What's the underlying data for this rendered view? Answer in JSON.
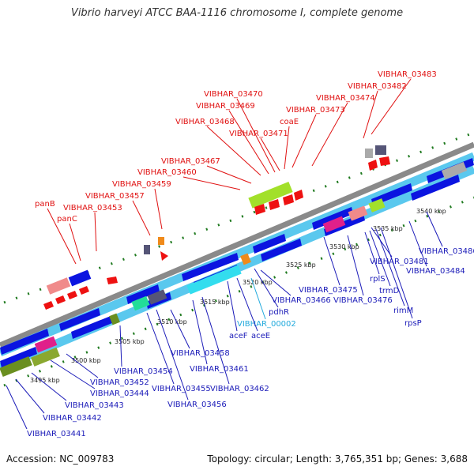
{
  "title": "Vibrio harveyi ATCC BAA-1116 chromosome I, complete genome",
  "footer": {
    "accession": "Accession: NC_009783",
    "summary": "Topology: circular; Length: 3,765,351 bp; Genes: 3,688"
  },
  "colors": {
    "forward_gene": "#0b14e0",
    "reverse_gene": "#0b14e0",
    "cds_band": "#5ac8ee",
    "backbone": "#8a8a8a",
    "tick": "#1f7a1f",
    "label_red": "#e01010",
    "label_blue": "#1a1ab8",
    "label_cyan": "#22aadd"
  },
  "scale_labels": [
    "3495 kbp",
    "3500 kbp",
    "3505 kbp",
    "3510 kbp",
    "3515 kbp",
    "3520 kbp",
    "3525 kbp",
    "3530 kbp",
    "3535 kbp",
    "3540 kbp"
  ],
  "labels_top": [
    "VIBHAR_03483",
    "VIBHAR_03482",
    "VIBHAR_03474",
    "VIBHAR_03470",
    "VIBHAR_03473",
    "VIBHAR_03469",
    "coaE",
    "VIBHAR_03468",
    "VIBHAR_03471",
    "VIBHAR_03467",
    "VIBHAR_03460",
    "VIBHAR_03459",
    "VIBHAR_03457",
    "panB",
    "VIBHAR_03453",
    "panC"
  ],
  "labels_bottom": [
    "VIBHAR_03486",
    "VIBHAR_03481",
    "VIBHAR_03484",
    "rplS",
    "trmD",
    "rimM",
    "rpsP",
    "VIBHAR_03475",
    "VIBHAR_03476",
    "VIBHAR_03466",
    "pdhR",
    "VIBHAR_00002",
    "aceF",
    "aceE",
    "VIBHAR_03458",
    "VIBHAR_03461",
    "VIBHAR_03462",
    "VIBHAR_03454",
    "VIBHAR_03452",
    "VIBHAR_03444",
    "VIBHAR_03455",
    "VIBHAR_03456",
    "VIBHAR_03443",
    "VIBHAR_03442",
    "VIBHAR_03441"
  ]
}
